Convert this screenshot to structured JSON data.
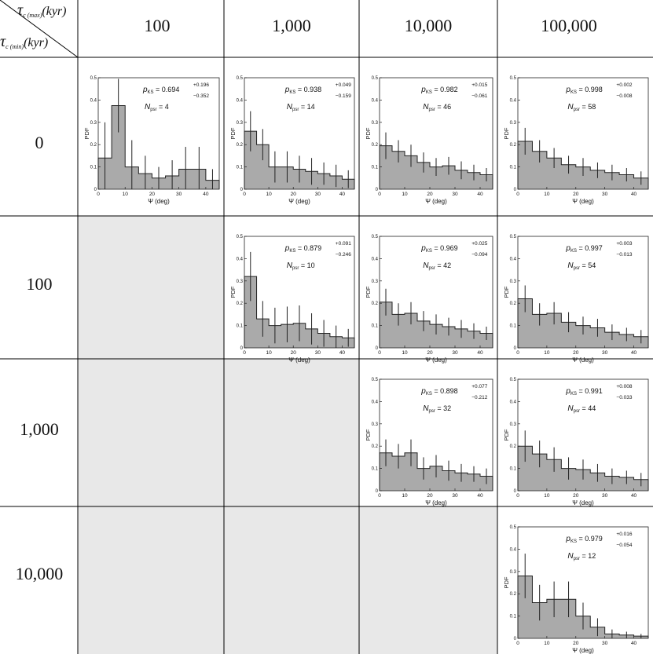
{
  "corner": {
    "col_symbol": "τ",
    "col_sub": "c (max)",
    "col_unit": "(kyr)",
    "row_symbol": "τ",
    "row_sub": "c (min)",
    "row_unit": "(kyr)"
  },
  "col_headers": [
    "100",
    "1,000",
    "10,000",
    "100,000"
  ],
  "row_headers": [
    "0",
    "100",
    "1,000",
    "10,000"
  ],
  "colors": {
    "bar_fill": "#aaaaaa",
    "empty_cell": "#e8e8e8",
    "line": "#000000"
  },
  "chart_data": [
    {
      "type": "bar",
      "row": 0,
      "col": 0,
      "xlabel": "Ψ (deg)",
      "ylabel": "PDF",
      "xlim": [
        0,
        45
      ],
      "ylim": [
        0,
        0.5
      ],
      "xticks": [
        "0",
        "10",
        "20",
        "30",
        "40"
      ],
      "yticks": [
        "0",
        "0.1",
        "0.2",
        "0.3",
        "0.4",
        "0.5"
      ],
      "bin_edges": [
        0,
        5,
        10,
        15,
        20,
        25,
        30,
        35,
        40,
        45
      ],
      "values": [
        0.14,
        0.375,
        0.1,
        0.07,
        0.05,
        0.06,
        0.09,
        0.09,
        0.04
      ],
      "errors": [
        0.16,
        0.12,
        0.12,
        0.08,
        0.05,
        0.07,
        0.1,
        0.1,
        0.05
      ],
      "pks_label": "p",
      "pks_sub": "KS",
      "pks_value": "= 0.694",
      "pks_plus": "+0.196",
      "pks_minus": "−0.352",
      "npsr_label": "N",
      "npsr_sub": "psr",
      "npsr_value": "= 4"
    },
    {
      "type": "bar",
      "row": 0,
      "col": 1,
      "xlabel": "Ψ (deg)",
      "ylabel": "PDF",
      "xlim": [
        0,
        45
      ],
      "ylim": [
        0,
        0.5
      ],
      "xticks": [
        "0",
        "10",
        "20",
        "30",
        "40"
      ],
      "yticks": [
        "0",
        "0.1",
        "0.2",
        "0.3",
        "0.4",
        "0.5"
      ],
      "bin_edges": [
        0,
        5,
        10,
        15,
        20,
        25,
        30,
        35,
        40,
        45
      ],
      "values": [
        0.26,
        0.2,
        0.1,
        0.1,
        0.09,
        0.08,
        0.07,
        0.06,
        0.045
      ],
      "errors": [
        0.09,
        0.07,
        0.07,
        0.07,
        0.06,
        0.06,
        0.05,
        0.05,
        0.04
      ],
      "pks_label": "p",
      "pks_sub": "KS",
      "pks_value": "= 0.938",
      "pks_plus": "+0.049",
      "pks_minus": "−0.159",
      "npsr_label": "N",
      "npsr_sub": "psr",
      "npsr_value": "= 14"
    },
    {
      "type": "bar",
      "row": 0,
      "col": 2,
      "xlabel": "Ψ (deg)",
      "ylabel": "PDF",
      "xlim": [
        0,
        45
      ],
      "ylim": [
        0,
        0.5
      ],
      "xticks": [
        "0",
        "10",
        "20",
        "30",
        "40"
      ],
      "yticks": [
        "0",
        "0.1",
        "0.2",
        "0.3",
        "0.4",
        "0.5"
      ],
      "bin_edges": [
        0,
        5,
        10,
        15,
        20,
        25,
        30,
        35,
        40,
        45
      ],
      "values": [
        0.195,
        0.17,
        0.15,
        0.12,
        0.1,
        0.105,
        0.085,
        0.075,
        0.065
      ],
      "errors": [
        0.06,
        0.05,
        0.05,
        0.045,
        0.04,
        0.04,
        0.04,
        0.035,
        0.03
      ],
      "pks_label": "p",
      "pks_sub": "KS",
      "pks_value": "= 0.982",
      "pks_plus": "+0.015",
      "pks_minus": "−0.061",
      "npsr_label": "N",
      "npsr_sub": "psr",
      "npsr_value": "= 46"
    },
    {
      "type": "bar",
      "row": 0,
      "col": 3,
      "xlabel": "Ψ (deg)",
      "ylabel": "PDF",
      "xlim": [
        0,
        45
      ],
      "ylim": [
        0,
        0.5
      ],
      "xticks": [
        "0",
        "10",
        "20",
        "30",
        "40"
      ],
      "yticks": [
        "0",
        "0.1",
        "0.2",
        "0.3",
        "0.4",
        "0.5"
      ],
      "bin_edges": [
        0,
        5,
        10,
        15,
        20,
        25,
        30,
        35,
        40,
        45
      ],
      "values": [
        0.215,
        0.17,
        0.14,
        0.11,
        0.1,
        0.085,
        0.075,
        0.065,
        0.05
      ],
      "errors": [
        0.06,
        0.05,
        0.045,
        0.04,
        0.04,
        0.035,
        0.035,
        0.03,
        0.03
      ],
      "pks_label": "p",
      "pks_sub": "KS",
      "pks_value": "= 0.998",
      "pks_plus": "+0.002",
      "pks_minus": "−0.008",
      "npsr_label": "N",
      "npsr_sub": "psr",
      "npsr_value": "= 58"
    },
    {
      "type": "bar",
      "row": 1,
      "col": 1,
      "xlabel": "Ψ (deg)",
      "ylabel": "PDF",
      "xlim": [
        0,
        45
      ],
      "ylim": [
        0,
        0.5
      ],
      "xticks": [
        "0",
        "10",
        "20",
        "30",
        "40"
      ],
      "yticks": [
        "0",
        "0.1",
        "0.2",
        "0.3",
        "0.4",
        "0.5"
      ],
      "bin_edges": [
        0,
        5,
        10,
        15,
        20,
        25,
        30,
        35,
        40,
        45
      ],
      "values": [
        0.32,
        0.13,
        0.1,
        0.105,
        0.11,
        0.085,
        0.065,
        0.05,
        0.045
      ],
      "errors": [
        0.11,
        0.08,
        0.08,
        0.08,
        0.08,
        0.07,
        0.06,
        0.05,
        0.04
      ],
      "pks_label": "p",
      "pks_sub": "KS",
      "pks_value": "= 0.879",
      "pks_plus": "+0.091",
      "pks_minus": "−0.246",
      "npsr_label": "N",
      "npsr_sub": "psr",
      "npsr_value": "= 10"
    },
    {
      "type": "bar",
      "row": 1,
      "col": 2,
      "xlabel": "Ψ (deg)",
      "ylabel": "PDF",
      "xlim": [
        0,
        45
      ],
      "ylim": [
        0,
        0.5
      ],
      "xticks": [
        "0",
        "10",
        "20",
        "30",
        "40"
      ],
      "yticks": [
        "0",
        "0.1",
        "0.2",
        "0.3",
        "0.4",
        "0.5"
      ],
      "bin_edges": [
        0,
        5,
        10,
        15,
        20,
        25,
        30,
        35,
        40,
        45
      ],
      "values": [
        0.205,
        0.15,
        0.155,
        0.12,
        0.105,
        0.095,
        0.085,
        0.075,
        0.065
      ],
      "errors": [
        0.06,
        0.05,
        0.05,
        0.045,
        0.045,
        0.04,
        0.04,
        0.035,
        0.03
      ],
      "pks_label": "p",
      "pks_sub": "KS",
      "pks_value": "= 0.969",
      "pks_plus": "+0.025",
      "pks_minus": "−0.094",
      "npsr_label": "N",
      "npsr_sub": "psr",
      "npsr_value": "= 42"
    },
    {
      "type": "bar",
      "row": 1,
      "col": 3,
      "xlabel": "Ψ (deg)",
      "ylabel": "PDF",
      "xlim": [
        0,
        45
      ],
      "ylim": [
        0,
        0.5
      ],
      "xticks": [
        "0",
        "10",
        "20",
        "30",
        "40"
      ],
      "yticks": [
        "0",
        "0.1",
        "0.2",
        "0.3",
        "0.4",
        "0.5"
      ],
      "bin_edges": [
        0,
        5,
        10,
        15,
        20,
        25,
        30,
        35,
        40,
        45
      ],
      "values": [
        0.22,
        0.15,
        0.155,
        0.115,
        0.1,
        0.09,
        0.07,
        0.06,
        0.05
      ],
      "errors": [
        0.06,
        0.05,
        0.05,
        0.045,
        0.04,
        0.04,
        0.035,
        0.03,
        0.03
      ],
      "pks_label": "p",
      "pks_sub": "KS",
      "pks_value": "= 0.997",
      "pks_plus": "+0.003",
      "pks_minus": "−0.013",
      "npsr_label": "N",
      "npsr_sub": "psr",
      "npsr_value": "= 54"
    },
    {
      "type": "bar",
      "row": 2,
      "col": 2,
      "xlabel": "Ψ (deg)",
      "ylabel": "PDF",
      "xlim": [
        0,
        45
      ],
      "ylim": [
        0,
        0.5
      ],
      "xticks": [
        "0",
        "10",
        "20",
        "30",
        "40"
      ],
      "yticks": [
        "0",
        "0.1",
        "0.2",
        "0.3",
        "0.4",
        "0.5"
      ],
      "bin_edges": [
        0,
        5,
        10,
        15,
        20,
        25,
        30,
        35,
        40,
        45
      ],
      "values": [
        0.17,
        0.155,
        0.17,
        0.1,
        0.11,
        0.09,
        0.08,
        0.075,
        0.065
      ],
      "errors": [
        0.06,
        0.055,
        0.06,
        0.05,
        0.05,
        0.045,
        0.04,
        0.035,
        0.035
      ],
      "pks_label": "p",
      "pks_sub": "KS",
      "pks_value": "= 0.898",
      "pks_plus": "+0.077",
      "pks_minus": "−0.212",
      "npsr_label": "N",
      "npsr_sub": "psr",
      "npsr_value": "= 32"
    },
    {
      "type": "bar",
      "row": 2,
      "col": 3,
      "xlabel": "Ψ (deg)",
      "ylabel": "PDF",
      "xlim": [
        0,
        45
      ],
      "ylim": [
        0,
        0.5
      ],
      "xticks": [
        "0",
        "10",
        "20",
        "30",
        "40"
      ],
      "yticks": [
        "0",
        "0.1",
        "0.2",
        "0.3",
        "0.4",
        "0.5"
      ],
      "bin_edges": [
        0,
        5,
        10,
        15,
        20,
        25,
        30,
        35,
        40,
        45
      ],
      "values": [
        0.2,
        0.165,
        0.14,
        0.1,
        0.095,
        0.08,
        0.065,
        0.06,
        0.05
      ],
      "errors": [
        0.07,
        0.06,
        0.055,
        0.05,
        0.045,
        0.04,
        0.035,
        0.03,
        0.03
      ],
      "pks_label": "p",
      "pks_sub": "KS",
      "pks_value": "= 0.991",
      "pks_plus": "+0.008",
      "pks_minus": "−0.033",
      "npsr_label": "N",
      "npsr_sub": "psr",
      "npsr_value": "= 44"
    },
    {
      "type": "bar",
      "row": 3,
      "col": 3,
      "xlabel": "Ψ (deg)",
      "ylabel": "PDF",
      "xlim": [
        0,
        45
      ],
      "ylim": [
        0,
        0.5
      ],
      "xticks": [
        "0",
        "10",
        "20",
        "30",
        "40"
      ],
      "yticks": [
        "0",
        "0.1",
        "0.2",
        "0.3",
        "0.4",
        "0.5"
      ],
      "bin_edges": [
        0,
        5,
        10,
        15,
        20,
        25,
        30,
        35,
        40,
        45
      ],
      "values": [
        0.28,
        0.16,
        0.175,
        0.175,
        0.1,
        0.05,
        0.02,
        0.015,
        0.01
      ],
      "errors": [
        0.1,
        0.08,
        0.08,
        0.08,
        0.06,
        0.04,
        0.02,
        0.015,
        0.01
      ],
      "pks_label": "p",
      "pks_sub": "KS",
      "pks_value": "= 0.979",
      "pks_plus": "+0.016",
      "pks_minus": "−0.054",
      "npsr_label": "N",
      "npsr_sub": "psr",
      "npsr_value": "= 12"
    }
  ]
}
